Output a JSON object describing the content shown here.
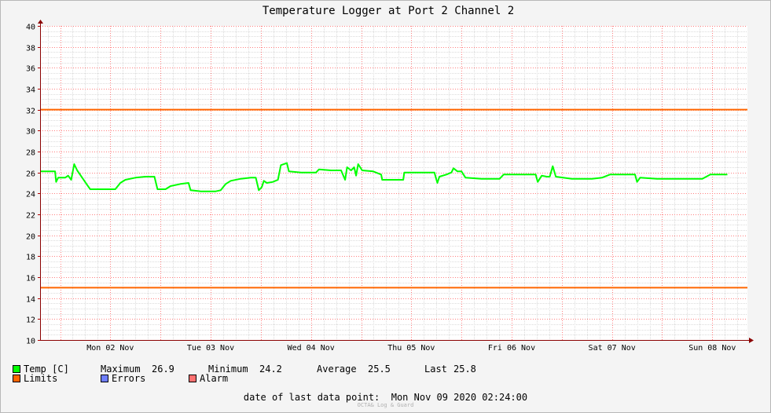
{
  "colors": {
    "background": "#f4f4f4",
    "plot_background": "#ffffff",
    "temp": "#00ff00",
    "limits": "#ff6600",
    "errors": "#6f7fff",
    "alarm": "#ff7070",
    "grid_minor": "#dcdcdc",
    "grid_major": "#ff8080",
    "axis": "#8b0000"
  },
  "legend": {
    "temp_label": "Temp [C]",
    "max_label": "Maximum",
    "max_value": "26.9",
    "min_label": "Minimum",
    "min_value": "24.2",
    "avg_label": "Average",
    "avg_value": "25.5",
    "last_label": "Last",
    "last_value": "25.8",
    "limits_label": "Limits",
    "errors_label": "Errors",
    "alarm_label": "Alarm"
  },
  "footer": {
    "date_text": "date of last data point:  Mon Nov 09 2020 02:24:00",
    "credit": "OCTA& Log & Guard"
  },
  "chart_data": {
    "type": "line",
    "title": "Temperature Logger at Port 2 Channel 2",
    "xlabel": "",
    "ylabel": "",
    "x_unit": "days since Mon 02 Nov 00:00",
    "xlim": [
      -0.2,
      6.85
    ],
    "ylim": [
      10,
      40
    ],
    "y_ticks": [
      10,
      12,
      14,
      16,
      18,
      20,
      22,
      24,
      26,
      28,
      30,
      32,
      34,
      36,
      38,
      40
    ],
    "x_ticks": [
      "Mon 02 Nov",
      "Tue 03 Nov",
      "Wed 04 Nov",
      "Thu 05 Nov",
      "Fri 06 Nov",
      "Sat 07 Nov",
      "Sun 08 Nov"
    ],
    "grid": true,
    "legend_position": "bottom",
    "series": [
      {
        "name": "Temp [C]",
        "color": "#00ff00",
        "points": [
          [
            -0.2,
            26.1
          ],
          [
            -0.05,
            26.1
          ],
          [
            -0.04,
            25.1
          ],
          [
            -0.02,
            25.5
          ],
          [
            0.05,
            25.5
          ],
          [
            0.08,
            25.7
          ],
          [
            0.11,
            25.3
          ],
          [
            0.14,
            26.8
          ],
          [
            0.17,
            26.2
          ],
          [
            0.22,
            25.5
          ],
          [
            0.27,
            24.8
          ],
          [
            0.3,
            24.4
          ],
          [
            0.4,
            24.4
          ],
          [
            0.55,
            24.4
          ],
          [
            0.6,
            25.0
          ],
          [
            0.65,
            25.3
          ],
          [
            0.75,
            25.5
          ],
          [
            0.85,
            25.6
          ],
          [
            0.94,
            25.6
          ],
          [
            0.97,
            24.4
          ],
          [
            1.05,
            24.4
          ],
          [
            1.1,
            24.7
          ],
          [
            1.2,
            24.9
          ],
          [
            1.28,
            25.0
          ],
          [
            1.3,
            24.3
          ],
          [
            1.4,
            24.2
          ],
          [
            1.55,
            24.2
          ],
          [
            1.6,
            24.3
          ],
          [
            1.65,
            24.9
          ],
          [
            1.7,
            25.2
          ],
          [
            1.8,
            25.4
          ],
          [
            1.9,
            25.5
          ],
          [
            1.95,
            25.5
          ],
          [
            1.98,
            24.3
          ],
          [
            2.01,
            24.6
          ],
          [
            2.03,
            25.2
          ],
          [
            2.06,
            25.0
          ],
          [
            2.12,
            25.1
          ],
          [
            2.17,
            25.3
          ],
          [
            2.2,
            26.7
          ],
          [
            2.26,
            26.9
          ],
          [
            2.28,
            26.1
          ],
          [
            2.4,
            26.0
          ],
          [
            2.55,
            26.0
          ],
          [
            2.58,
            26.3
          ],
          [
            2.7,
            26.2
          ],
          [
            2.8,
            26.2
          ],
          [
            2.84,
            25.3
          ],
          [
            2.86,
            26.5
          ],
          [
            2.9,
            26.2
          ],
          [
            2.93,
            26.5
          ],
          [
            2.95,
            25.7
          ],
          [
            2.97,
            26.8
          ],
          [
            3.01,
            26.2
          ],
          [
            3.12,
            26.1
          ],
          [
            3.2,
            25.8
          ],
          [
            3.21,
            25.3
          ],
          [
            3.3,
            25.3
          ],
          [
            3.42,
            25.3
          ],
          [
            3.43,
            26.0
          ],
          [
            3.55,
            26.0
          ],
          [
            3.73,
            26.0
          ],
          [
            3.76,
            25.0
          ],
          [
            3.78,
            25.6
          ],
          [
            3.85,
            25.8
          ],
          [
            3.9,
            26.0
          ],
          [
            3.92,
            26.4
          ],
          [
            3.96,
            26.1
          ],
          [
            4.0,
            26.1
          ],
          [
            4.04,
            25.5
          ],
          [
            4.2,
            25.4
          ],
          [
            4.38,
            25.4
          ],
          [
            4.42,
            25.8
          ],
          [
            4.6,
            25.8
          ],
          [
            4.74,
            25.8
          ],
          [
            4.76,
            25.1
          ],
          [
            4.8,
            25.7
          ],
          [
            4.85,
            25.6
          ],
          [
            4.88,
            25.6
          ],
          [
            4.91,
            26.6
          ],
          [
            4.94,
            25.6
          ],
          [
            5.1,
            25.4
          ],
          [
            5.2,
            25.4
          ],
          [
            5.3,
            25.4
          ],
          [
            5.4,
            25.5
          ],
          [
            5.48,
            25.8
          ],
          [
            5.6,
            25.8
          ],
          [
            5.73,
            25.8
          ],
          [
            5.75,
            25.1
          ],
          [
            5.78,
            25.5
          ],
          [
            5.95,
            25.4
          ],
          [
            6.1,
            25.4
          ],
          [
            6.25,
            25.4
          ],
          [
            6.4,
            25.4
          ],
          [
            6.48,
            25.8
          ],
          [
            6.6,
            25.8
          ],
          [
            6.65,
            25.8
          ]
        ]
      },
      {
        "name": "Limits",
        "color": "#ff6600",
        "values": [
          32,
          15
        ]
      }
    ]
  }
}
